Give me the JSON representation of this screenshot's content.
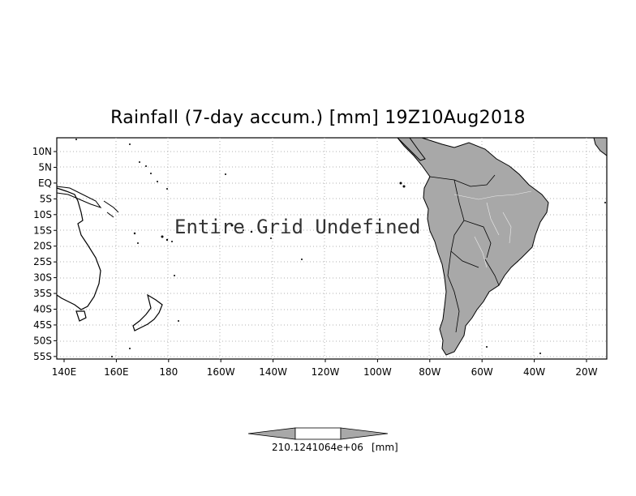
{
  "map": {
    "title": "Rainfall (7-day accum.) [mm] 19Z10Aug2018",
    "overlay_message": "Entire Grid Undefined",
    "lat_labels": [
      "10N",
      "5N",
      "EQ",
      "5S",
      "10S",
      "15S",
      "20S",
      "25S",
      "30S",
      "35S",
      "40S",
      "45S",
      "50S",
      "55S"
    ],
    "lon_labels": [
      "140E",
      "160E",
      "180",
      "160W",
      "140W",
      "120W",
      "100W",
      "80W",
      "60W",
      "40W",
      "20W"
    ],
    "land_fill_color": "#a8a8a8",
    "grid_line_color": "#b0b0b0"
  },
  "colorbar": {
    "label": "210.1241064e+06",
    "unit": "[mm]",
    "fill_color": "#a8a8a8"
  }
}
